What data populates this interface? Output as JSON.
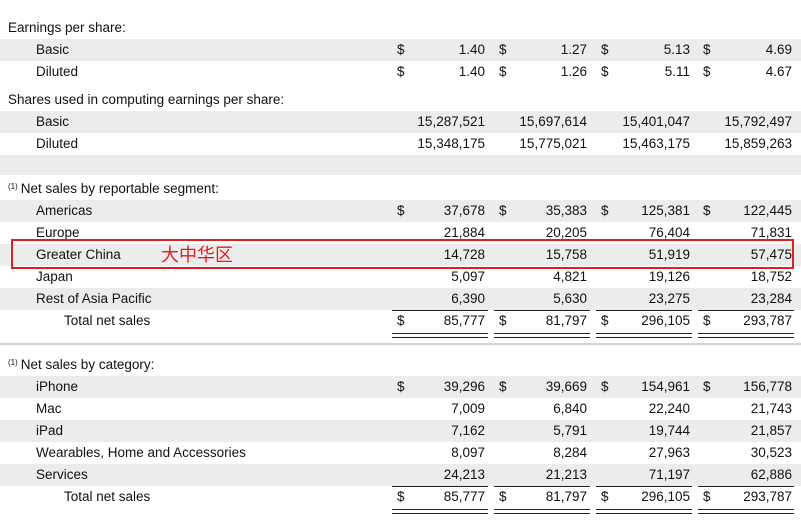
{
  "eps": {
    "heading": "Earnings per share:",
    "rows": [
      {
        "label": "Basic",
        "values": [
          "1.40",
          "1.27",
          "5.13",
          "4.69"
        ]
      },
      {
        "label": "Diluted",
        "values": [
          "1.40",
          "1.26",
          "5.11",
          "4.67"
        ]
      }
    ]
  },
  "shares": {
    "heading": "Shares used in computing earnings per share:",
    "rows": [
      {
        "label": "Basic",
        "values": [
          "15,287,521",
          "15,697,614",
          "15,401,047",
          "15,792,497"
        ]
      },
      {
        "label": "Diluted",
        "values": [
          "15,348,175",
          "15,775,021",
          "15,463,175",
          "15,859,263"
        ]
      }
    ]
  },
  "segment": {
    "note": "(1)",
    "heading": "Net sales by reportable segment:",
    "rows": [
      {
        "label": "Americas",
        "values": [
          "37,678",
          "35,383",
          "125,381",
          "122,445"
        ]
      },
      {
        "label": "Europe",
        "values": [
          "21,884",
          "20,205",
          "76,404",
          "71,831"
        ]
      },
      {
        "label": "Greater China",
        "values": [
          "14,728",
          "15,758",
          "51,919",
          "57,475"
        ]
      },
      {
        "label": "Japan",
        "values": [
          "5,097",
          "4,821",
          "19,126",
          "18,752"
        ]
      },
      {
        "label": "Rest of Asia Pacific",
        "values": [
          "6,390",
          "5,630",
          "23,275",
          "23,284"
        ]
      }
    ],
    "total": {
      "label": "Total net sales",
      "values": [
        "85,777",
        "81,797",
        "296,105",
        "293,787"
      ]
    }
  },
  "category": {
    "note": "(1)",
    "heading": "Net sales by category:",
    "rows": [
      {
        "label": "iPhone",
        "values": [
          "39,296",
          "39,669",
          "154,961",
          "156,778"
        ]
      },
      {
        "label": "Mac",
        "values": [
          "7,009",
          "6,840",
          "22,240",
          "21,743"
        ]
      },
      {
        "label": "iPad",
        "values": [
          "7,162",
          "5,791",
          "19,744",
          "21,857"
        ]
      },
      {
        "label": "Wearables, Home and Accessories",
        "values": [
          "8,097",
          "8,284",
          "27,963",
          "30,523"
        ]
      },
      {
        "label": "Services",
        "values": [
          "24,213",
          "21,213",
          "71,197",
          "62,886"
        ]
      }
    ],
    "total": {
      "label": "Total net sales",
      "values": [
        "85,777",
        "81,797",
        "296,105",
        "293,787"
      ]
    }
  },
  "currency_symbol": "$",
  "annotation": {
    "text": "大中华区",
    "color": "#e02020"
  }
}
